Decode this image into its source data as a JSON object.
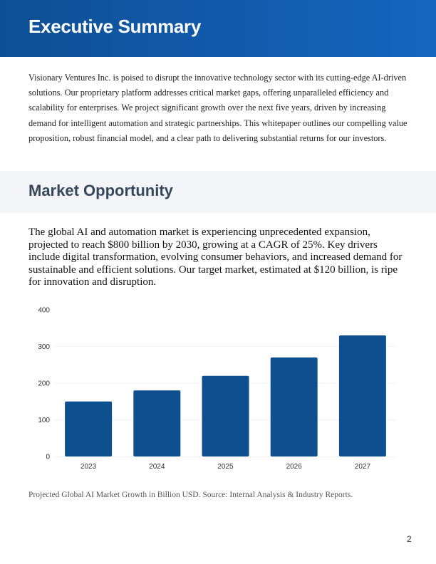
{
  "header": {
    "title": "Executive Summary"
  },
  "executive_summary": "Visionary Ventures Inc. is poised to disrupt the innovative technology sector with its cutting-edge AI-driven solutions. Our proprietary platform addresses critical market gaps, offering unparalleled efficiency and scalability for enterprises. We project significant growth over the next five years, driven by increasing demand for intelligent automation and strategic partnerships. This whitepaper outlines our compelling value proposition, robust financial model, and a clear path to delivering substantial returns for our investors.",
  "market": {
    "title": "Market Opportunity",
    "body": "The global AI and automation market is experiencing unprecedented expansion, projected to reach $800 billion by 2030, growing at a CAGR of 25%. Key drivers include digital transformation, evolving consumer behaviors, and increased demand for sustainable and efficient solutions. Our target market, estimated at $120 billion, is ripe for innovation and disruption."
  },
  "chart_data": {
    "type": "bar",
    "categories": [
      "2023",
      "2024",
      "2025",
      "2026",
      "2027"
    ],
    "values": [
      150,
      180,
      220,
      270,
      330
    ],
    "ylim": [
      0,
      400
    ],
    "yticks": [
      0,
      100,
      200,
      300,
      400
    ],
    "grid": true,
    "bar_color": "#0d4f8f",
    "caption": "Projected Global AI Market Growth in Billion USD. Source: Internal Analysis & Industry Reports."
  },
  "page_number": "2"
}
